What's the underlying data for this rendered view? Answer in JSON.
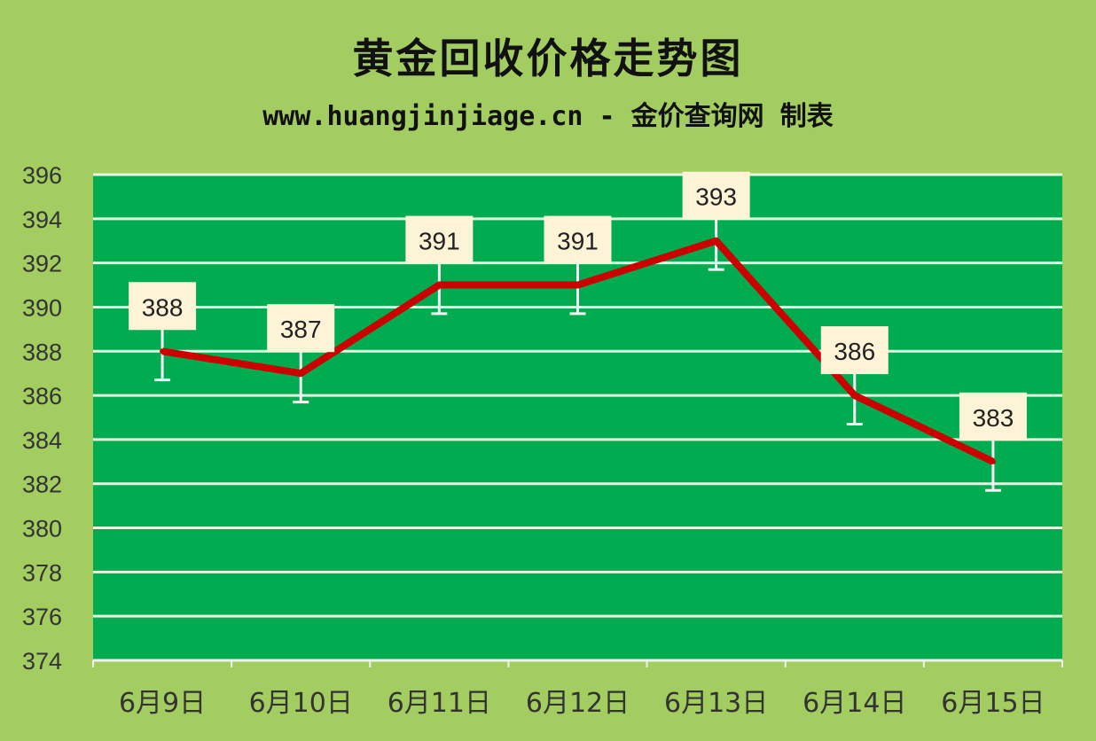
{
  "chart_data": {
    "type": "line",
    "title": "黄金回收价格走势图",
    "subtitle": "www.huangjinjiage.cn - 金价查询网 制表",
    "categories": [
      "6月9日",
      "6月10日",
      "6月11日",
      "6月12日",
      "6月13日",
      "6月14日",
      "6月15日"
    ],
    "series": [
      {
        "values": [
          388,
          387,
          391,
          391,
          393,
          386,
          383
        ],
        "color": "#cc0000"
      }
    ],
    "data_labels": [
      "388",
      "387",
      "391",
      "391",
      "393",
      "386",
      "383"
    ],
    "error_bar": 1.3,
    "ylim": [
      374,
      396
    ],
    "yticks": [
      374,
      376,
      378,
      380,
      382,
      384,
      386,
      388,
      390,
      392,
      394,
      396
    ],
    "ytick_labels": [
      "374",
      "376",
      "378",
      "380",
      "382",
      "384",
      "386",
      "388",
      "390",
      "392",
      "394",
      "396"
    ],
    "grid": true,
    "colors": {
      "background": "#a3cd60",
      "plot_area": "#00ac4f",
      "gridline": "#e8f5e0",
      "label_box": "#fdf3d6"
    }
  }
}
